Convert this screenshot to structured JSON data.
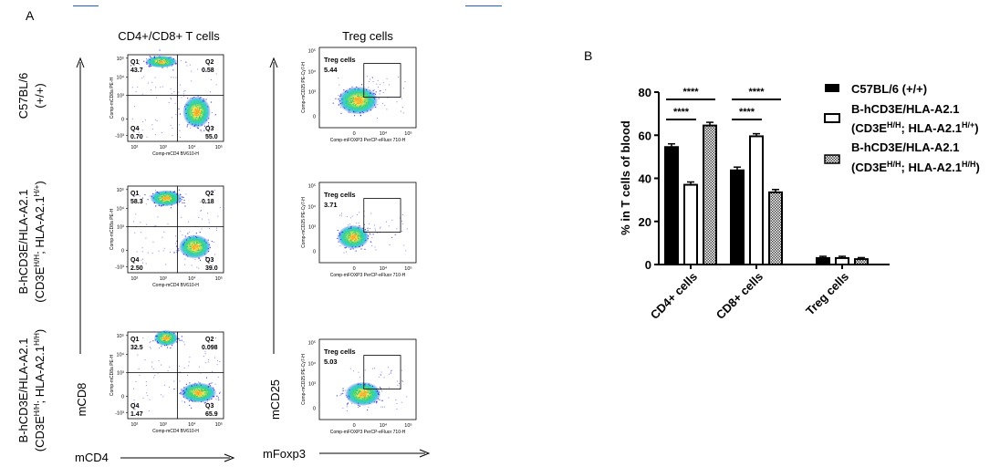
{
  "panel_a": {
    "label": "A",
    "col_titles": [
      "CD4+/CD8+ T cells",
      "Treg cells"
    ],
    "row_labels": [
      {
        "main": "C57BL/6",
        "sub": "(+/+)"
      },
      {
        "main": "B-hCD3E/HLA-A2.1",
        "sub_pre": "(CD3E",
        "sup1": "H/H",
        "sub_mid": "; HLA-A2.1",
        "sup2": "H/+",
        "sub_post": ")"
      },
      {
        "main": "B-hCD3E/HLA-A2.1",
        "sub_pre": "(CD3E",
        "sup1": "H/H",
        "sub_mid": "; HLA-A2.1",
        "sup2": "H/H",
        "sub_post": ")"
      }
    ],
    "cd_plots": [
      {
        "q1_label": "Q1",
        "q1": "43.7",
        "q2_label": "Q2",
        "q2": "0.58",
        "q3_label": "Q3",
        "q3": "55.0",
        "q4_label": "Q4",
        "q4": "0.70"
      },
      {
        "q1_label": "Q1",
        "q1": "58.3",
        "q2_label": "Q2",
        "q2": "0.18",
        "q3_label": "Q3",
        "q3": "39.0",
        "q4_label": "Q4",
        "q4": "2.50"
      },
      {
        "q1_label": "Q1",
        "q1": "32.5",
        "q2_label": "Q2",
        "q2": "0.098",
        "q3_label": "Q3",
        "q3": "65.9",
        "q4_label": "Q4",
        "q4": "1.47"
      }
    ],
    "treg_plots": [
      {
        "gate_label": "Treg cells",
        "value": "5.44"
      },
      {
        "gate_label": "Treg cells",
        "value": "3.71"
      },
      {
        "gate_label": "Treg cells",
        "value": "5.03"
      }
    ],
    "cd_x_axis_label": "Comp-mCD4 BV610-H",
    "cd_y_axis_label": "Comp-mCD8a PE-H",
    "treg_x_axis_label": "Comp-mFOXP3 PerCP-eFluor 710-H",
    "treg_y_axis_label": "Comp-mCD25 PE-Cy7-H",
    "cd_x_ticks": [
      "10²",
      "10³",
      "10⁴",
      "10⁵"
    ],
    "cd_y_ticks": [
      "10⁵",
      "10⁴",
      "10³",
      "0",
      "-10³"
    ],
    "treg_x_ticks": [
      "0",
      "10⁴",
      "10⁵"
    ],
    "treg_y_ticks": [
      "10⁵",
      "10⁴",
      "10³",
      "0"
    ],
    "bottom_axis_cd": "mCD4",
    "bottom_axis_treg": "mFoxp3",
    "left_axis_cd": "mCD8",
    "left_axis_treg": "mCD25"
  },
  "panel_b": {
    "label": "B",
    "significance": "****"
  },
  "chart_data": {
    "type": "bar",
    "ylabel": "% in T cells of blood",
    "ylim": [
      0,
      80
    ],
    "yticks": [
      0,
      20,
      40,
      60,
      80
    ],
    "categories": [
      "CD4+ cells",
      "CD8+ cells",
      "Treg cells"
    ],
    "series": [
      {
        "name": "C57BL/6 (+/+)",
        "values": [
          54.5,
          43.7,
          3.0
        ],
        "errors": [
          1.5,
          1.5,
          0.8
        ],
        "color": "#000000",
        "fill": "solid"
      },
      {
        "name": "B-hCD3E/HLA-A2.1",
        "name_line2_pre": "(CD3E",
        "name_sup1": "H/H",
        "name_mid": "; HLA-A2.1",
        "name_sup2": "H/+",
        "name_post": ")",
        "values": [
          37.0,
          59.5,
          3.0
        ],
        "errors": [
          1.3,
          1.2,
          0.8
        ],
        "color": "#ffffff",
        "fill": "open"
      },
      {
        "name": "B-hCD3E/HLA-A2.1",
        "name_line2_pre": "(CD3E",
        "name_sup1": "H/H",
        "name_mid": "; HLA-A2.1",
        "name_sup2": "H/H",
        "name_post": ")",
        "values": [
          64.5,
          33.5,
          2.5
        ],
        "errors": [
          1.5,
          1.3,
          0.7
        ],
        "color": "#888888",
        "fill": "hatched"
      }
    ],
    "significance_brackets": [
      {
        "category": "CD4+ cells",
        "between": [
          0,
          2
        ],
        "label": "****"
      },
      {
        "category": "CD4+ cells",
        "between": [
          0,
          1
        ],
        "label": "****"
      },
      {
        "category": "CD8+ cells",
        "between": [
          0,
          2
        ],
        "label": "****"
      },
      {
        "category": "CD8+ cells",
        "between": [
          0,
          1
        ],
        "label": "****"
      }
    ],
    "legend_position": "top-right",
    "grid": false
  },
  "colors": {
    "title_blue": "#1a62c8",
    "density_low": "#3b3bd8",
    "density_mid": "#27c7d6",
    "density_high": "#f5a623"
  }
}
